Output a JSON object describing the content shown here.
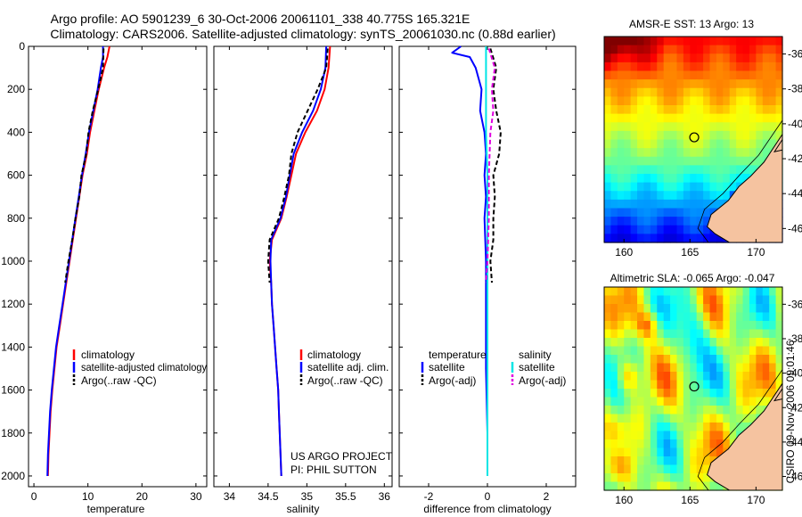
{
  "figure": {
    "title_line1": "Argo profile: AO 5901239_6 30-Oct-2006 20061101_338 40.775S 165.321E",
    "title_line2": "Climatology: CARS2006. Satellite-adjusted climatology: synTS_20061030.nc (0.88d earlier)",
    "credit": "CSIRO 09-Nov-2006 09:01:46",
    "project_line1": "US ARGO PROJECT",
    "project_line2": "PI: PHIL SUTTON"
  },
  "colors": {
    "climatology": "#ff0000",
    "satellite": "#0000ff",
    "argo": "#000000",
    "sat_salinity": "#00e5e5",
    "argo_salinity": "#e000e0",
    "land": "#f5c3a0"
  },
  "chart_data": [
    {
      "type": "line",
      "id": "temperature",
      "xlabel": "temperature",
      "ylabel": "",
      "xlim": [
        -1,
        32
      ],
      "ylim": [
        2050,
        0
      ],
      "xticks": [
        0,
        10,
        20,
        30
      ],
      "yticks": [
        0,
        200,
        400,
        600,
        800,
        1000,
        1200,
        1400,
        1600,
        1800,
        2000
      ],
      "legend": [
        "climatology",
        "satellite-adjusted climatology",
        "Argo(..raw -QC)"
      ],
      "series": [
        {
          "name": "climatology",
          "style": "solid",
          "color": "#ff0000",
          "points": [
            [
              14.0,
              0
            ],
            [
              13.6,
              50
            ],
            [
              13.0,
              100
            ],
            [
              12.0,
              200
            ],
            [
              11.2,
              300
            ],
            [
              10.4,
              400
            ],
            [
              9.8,
              500
            ],
            [
              9.0,
              600
            ],
            [
              8.4,
              700
            ],
            [
              7.8,
              800
            ],
            [
              7.2,
              900
            ],
            [
              6.6,
              1000
            ],
            [
              6.0,
              1100
            ],
            [
              5.4,
              1200
            ],
            [
              4.8,
              1300
            ],
            [
              4.2,
              1400
            ],
            [
              3.8,
              1500
            ],
            [
              3.4,
              1600
            ],
            [
              3.1,
              1700
            ],
            [
              2.9,
              1800
            ],
            [
              2.7,
              1900
            ],
            [
              2.6,
              2000
            ]
          ]
        },
        {
          "name": "satellite-adjusted climatology",
          "style": "solid",
          "color": "#0000ff",
          "points": [
            [
              12.8,
              0
            ],
            [
              12.8,
              50
            ],
            [
              12.4,
              100
            ],
            [
              11.8,
              200
            ],
            [
              11.0,
              300
            ],
            [
              10.2,
              400
            ],
            [
              9.6,
              500
            ],
            [
              8.9,
              600
            ],
            [
              8.3,
              700
            ],
            [
              7.7,
              800
            ],
            [
              7.1,
              900
            ],
            [
              6.5,
              1000
            ],
            [
              5.9,
              1100
            ],
            [
              5.3,
              1200
            ],
            [
              4.7,
              1300
            ],
            [
              4.1,
              1400
            ],
            [
              3.7,
              1500
            ],
            [
              3.3,
              1600
            ],
            [
              3.0,
              1700
            ],
            [
              2.8,
              1800
            ],
            [
              2.6,
              1900
            ],
            [
              2.5,
              2000
            ]
          ]
        },
        {
          "name": "Argo(..raw -QC)",
          "style": "dashed",
          "color": "#000000",
          "points": [
            [
              12.9,
              10
            ],
            [
              12.8,
              100
            ],
            [
              11.9,
              200
            ],
            [
              10.9,
              300
            ],
            [
              10.1,
              400
            ],
            [
              9.7,
              500
            ],
            [
              8.8,
              600
            ],
            [
              8.4,
              700
            ],
            [
              7.7,
              800
            ],
            [
              7.1,
              900
            ],
            [
              6.4,
              1000
            ],
            [
              5.8,
              1100
            ]
          ]
        }
      ]
    },
    {
      "type": "line",
      "id": "salinity",
      "xlabel": "salinity",
      "ylabel": "",
      "xlim": [
        33.8,
        36.1
      ],
      "ylim": [
        2050,
        0
      ],
      "xticks": [
        34,
        34.5,
        35,
        35.5,
        36
      ],
      "legend": [
        "climatology",
        "satellite adj. clim.",
        "Argo(..raw -QC)"
      ],
      "series": [
        {
          "name": "climatology",
          "style": "solid",
          "color": "#ff0000",
          "points": [
            [
              35.3,
              0
            ],
            [
              35.28,
              100
            ],
            [
              35.23,
              200
            ],
            [
              35.13,
              300
            ],
            [
              34.98,
              400
            ],
            [
              34.86,
              500
            ],
            [
              34.8,
              600
            ],
            [
              34.74,
              700
            ],
            [
              34.67,
              800
            ],
            [
              34.55,
              900
            ],
            [
              34.52,
              1000
            ],
            [
              34.54,
              1100
            ],
            [
              34.55,
              1200
            ],
            [
              34.57,
              1300
            ],
            [
              34.59,
              1400
            ],
            [
              34.61,
              1500
            ],
            [
              34.63,
              1600
            ],
            [
              34.64,
              1700
            ],
            [
              34.65,
              1800
            ],
            [
              34.66,
              1900
            ],
            [
              34.67,
              2000
            ]
          ]
        },
        {
          "name": "satellite adj. clim.",
          "style": "solid",
          "color": "#0000ff",
          "points": [
            [
              35.25,
              0
            ],
            [
              35.24,
              100
            ],
            [
              35.18,
              200
            ],
            [
              35.08,
              300
            ],
            [
              34.94,
              400
            ],
            [
              34.83,
              500
            ],
            [
              34.78,
              600
            ],
            [
              34.73,
              700
            ],
            [
              34.66,
              800
            ],
            [
              34.54,
              900
            ],
            [
              34.53,
              1000
            ],
            [
              34.54,
              1100
            ],
            [
              34.55,
              1200
            ],
            [
              34.57,
              1300
            ],
            [
              34.59,
              1400
            ],
            [
              34.61,
              1500
            ],
            [
              34.63,
              1600
            ],
            [
              34.64,
              1700
            ],
            [
              34.65,
              1800
            ],
            [
              34.66,
              1900
            ],
            [
              34.67,
              2000
            ]
          ]
        },
        {
          "name": "Argo(..raw -QC)",
          "style": "dashed",
          "color": "#000000",
          "points": [
            [
              35.27,
              10
            ],
            [
              35.25,
              100
            ],
            [
              35.14,
              200
            ],
            [
              35.01,
              300
            ],
            [
              34.88,
              400
            ],
            [
              34.8,
              500
            ],
            [
              34.77,
              600
            ],
            [
              34.71,
              700
            ],
            [
              34.64,
              800
            ],
            [
              34.52,
              900
            ],
            [
              34.5,
              1000
            ],
            [
              34.52,
              1100
            ]
          ]
        }
      ]
    },
    {
      "type": "line",
      "id": "difference",
      "xlabel": "difference from climatology",
      "ylabel": "",
      "xlim": [
        -3,
        3
      ],
      "ylim": [
        2050,
        0
      ],
      "xticks": [
        -2,
        0,
        2
      ],
      "legend_left_title": "temperature",
      "legend_right_title": "salinity",
      "legend": [
        "satellite",
        "Argo(-adj)",
        "satellite",
        "Argo(-adj)"
      ],
      "series": [
        {
          "name": "temperature satellite",
          "style": "solid",
          "color": "#0000ff",
          "points": [
            [
              -0.9,
              0
            ],
            [
              -1.2,
              30
            ],
            [
              -0.6,
              50
            ],
            [
              -0.4,
              100
            ],
            [
              -0.3,
              150
            ],
            [
              -0.2,
              200
            ],
            [
              -0.25,
              300
            ],
            [
              -0.1,
              400
            ],
            [
              -0.05,
              500
            ],
            [
              -0.1,
              600
            ],
            [
              -0.05,
              700
            ],
            [
              -0.1,
              800
            ],
            [
              -0.05,
              1000
            ],
            [
              -0.05,
              1200
            ],
            [
              -0.05,
              1500
            ],
            [
              0.0,
              1800
            ],
            [
              0.0,
              2000
            ]
          ]
        },
        {
          "name": "temperature Argo(-adj)",
          "style": "dashed",
          "color": "#000000",
          "points": [
            [
              0.1,
              10
            ],
            [
              0.3,
              100
            ],
            [
              0.2,
              200
            ],
            [
              0.3,
              300
            ],
            [
              0.45,
              400
            ],
            [
              0.4,
              500
            ],
            [
              0.2,
              600
            ],
            [
              0.25,
              700
            ],
            [
              0.2,
              800
            ],
            [
              0.2,
              900
            ],
            [
              0.1,
              1000
            ],
            [
              0.15,
              1100
            ]
          ]
        },
        {
          "name": "salinity satellite",
          "style": "solid",
          "color": "#00e5e5",
          "points": [
            [
              -0.05,
              0
            ],
            [
              -0.05,
              100
            ],
            [
              -0.05,
              200
            ],
            [
              -0.05,
              400
            ],
            [
              0.0,
              600
            ],
            [
              0.0,
              800
            ],
            [
              0.0,
              1000
            ],
            [
              0.0,
              1200
            ],
            [
              0.0,
              1500
            ],
            [
              0.0,
              1800
            ],
            [
              0.0,
              2000
            ]
          ]
        },
        {
          "name": "salinity Argo(-adj)",
          "style": "dashed",
          "color": "#e000e0",
          "points": [
            [
              0.05,
              10
            ],
            [
              0.25,
              100
            ],
            [
              0.15,
              200
            ],
            [
              0.2,
              300
            ],
            [
              0.1,
              400
            ],
            [
              0.05,
              600
            ],
            [
              0.05,
              800
            ],
            [
              0.0,
              1000
            ],
            [
              -0.05,
              1100
            ]
          ]
        }
      ]
    },
    {
      "type": "heatmap",
      "id": "sst_map",
      "title": "AMSR-E SST: 13 Argo: 13",
      "xlim": [
        158.5,
        172
      ],
      "ylim": [
        -46.8,
        -35
      ],
      "xticks": [
        160,
        165,
        170
      ],
      "yticks": [
        -36,
        -38,
        -40,
        -42,
        -44,
        -46
      ],
      "marker": [
        165.321,
        -40.775
      ]
    },
    {
      "type": "heatmap",
      "id": "sla_map",
      "title": "Altimetric SLA: -0.065 Argo: -0.047",
      "xlim": [
        158.5,
        172
      ],
      "ylim": [
        -46.8,
        -35
      ],
      "xticks": [
        160,
        165,
        170
      ],
      "yticks": [
        -36,
        -38,
        -40,
        -42,
        -44,
        -46
      ],
      "marker": [
        165.321,
        -40.775
      ]
    }
  ]
}
